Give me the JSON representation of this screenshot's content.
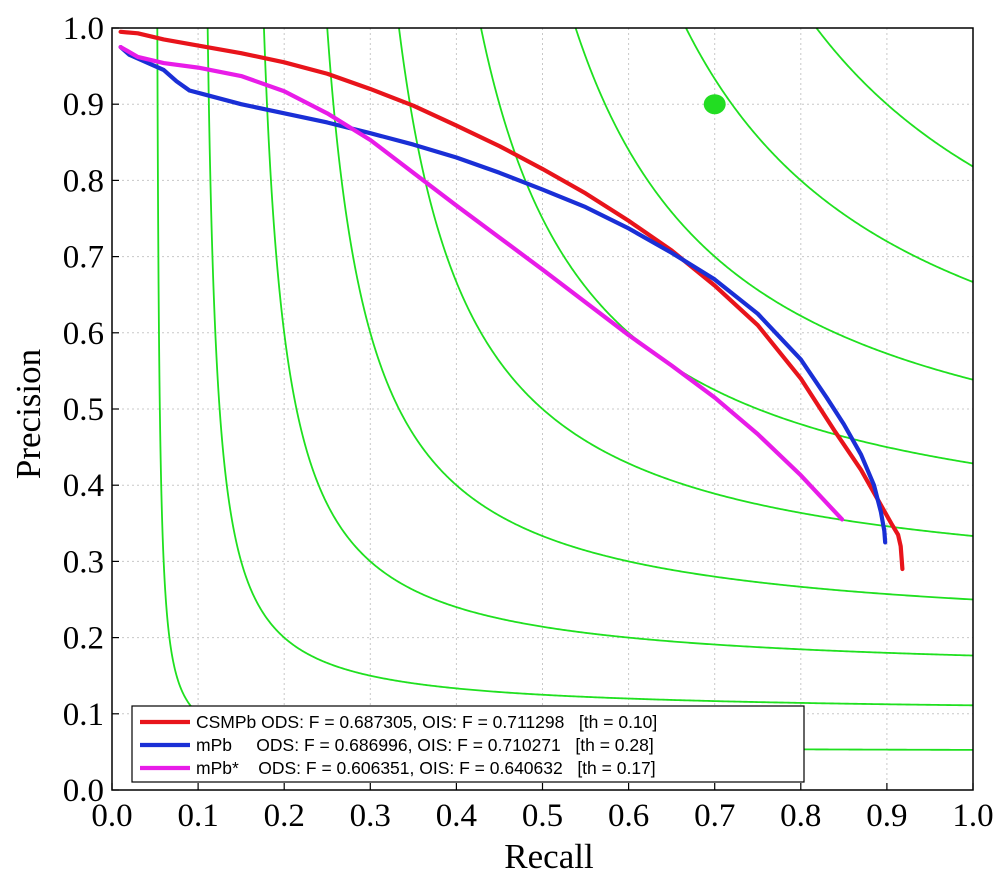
{
  "chart_data": {
    "type": "line",
    "xlabel": "Recall",
    "ylabel": "Precision",
    "xlim": [
      0.0,
      1.0
    ],
    "ylim": [
      0.0,
      1.0
    ],
    "x_ticks": [
      "0.0",
      "0.1",
      "0.2",
      "0.3",
      "0.4",
      "0.5",
      "0.6",
      "0.7",
      "0.8",
      "0.9",
      "1.0"
    ],
    "y_ticks": [
      "0.0",
      "0.1",
      "0.2",
      "0.3",
      "0.4",
      "0.5",
      "0.6",
      "0.7",
      "0.8",
      "0.9",
      "1.0"
    ],
    "grid": true,
    "legend_position": "bottom",
    "iso_f_curves": {
      "color": "#1fe01f",
      "f_values": [
        0.1,
        0.2,
        0.3,
        0.4,
        0.5,
        0.6,
        0.7,
        0.8,
        0.9
      ]
    },
    "human_point": {
      "x": 0.7,
      "y": 0.9,
      "color": "#22dd22"
    },
    "series": [
      {
        "name": "CSMPb",
        "legend_label": "CSMPb ODS: F = 0.687305, OIS: F = 0.711298   [th = 0.10]",
        "color": "#e8141b",
        "x": [
          0.01,
          0.03,
          0.06,
          0.1,
          0.15,
          0.2,
          0.25,
          0.3,
          0.35,
          0.4,
          0.45,
          0.5,
          0.55,
          0.6,
          0.65,
          0.7,
          0.75,
          0.8,
          0.84,
          0.87,
          0.89,
          0.905,
          0.913,
          0.916,
          0.917,
          0.918
        ],
        "y": [
          0.995,
          0.993,
          0.985,
          0.977,
          0.967,
          0.955,
          0.94,
          0.92,
          0.898,
          0.872,
          0.845,
          0.815,
          0.783,
          0.747,
          0.708,
          0.662,
          0.61,
          0.54,
          0.47,
          0.42,
          0.38,
          0.35,
          0.335,
          0.32,
          0.305,
          0.29
        ]
      },
      {
        "name": "mPb",
        "legend_label": "mPb     ODS: F = 0.686996, OIS: F = 0.710271   [th = 0.28]",
        "color": "#1a2fd6",
        "x": [
          0.01,
          0.02,
          0.04,
          0.06,
          0.075,
          0.09,
          0.11,
          0.15,
          0.2,
          0.25,
          0.3,
          0.35,
          0.4,
          0.45,
          0.5,
          0.55,
          0.6,
          0.65,
          0.7,
          0.75,
          0.8,
          0.83,
          0.85,
          0.87,
          0.885,
          0.893,
          0.897,
          0.898
        ],
        "y": [
          0.975,
          0.965,
          0.955,
          0.945,
          0.93,
          0.918,
          0.912,
          0.9,
          0.888,
          0.876,
          0.862,
          0.847,
          0.83,
          0.81,
          0.788,
          0.765,
          0.737,
          0.705,
          0.67,
          0.625,
          0.565,
          0.515,
          0.48,
          0.44,
          0.4,
          0.365,
          0.34,
          0.325
        ]
      },
      {
        "name": "mPb*",
        "legend_label": "mPb*    ODS: F = 0.606351, OIS: F = 0.640632   [th = 0.17]",
        "color": "#e81ce8",
        "x": [
          0.01,
          0.03,
          0.06,
          0.1,
          0.15,
          0.2,
          0.25,
          0.3,
          0.35,
          0.4,
          0.45,
          0.5,
          0.55,
          0.6,
          0.65,
          0.7,
          0.75,
          0.8,
          0.848
        ],
        "y": [
          0.975,
          0.962,
          0.954,
          0.948,
          0.937,
          0.917,
          0.888,
          0.853,
          0.81,
          0.767,
          0.725,
          0.683,
          0.64,
          0.597,
          0.557,
          0.515,
          0.467,
          0.413,
          0.355
        ]
      }
    ]
  }
}
